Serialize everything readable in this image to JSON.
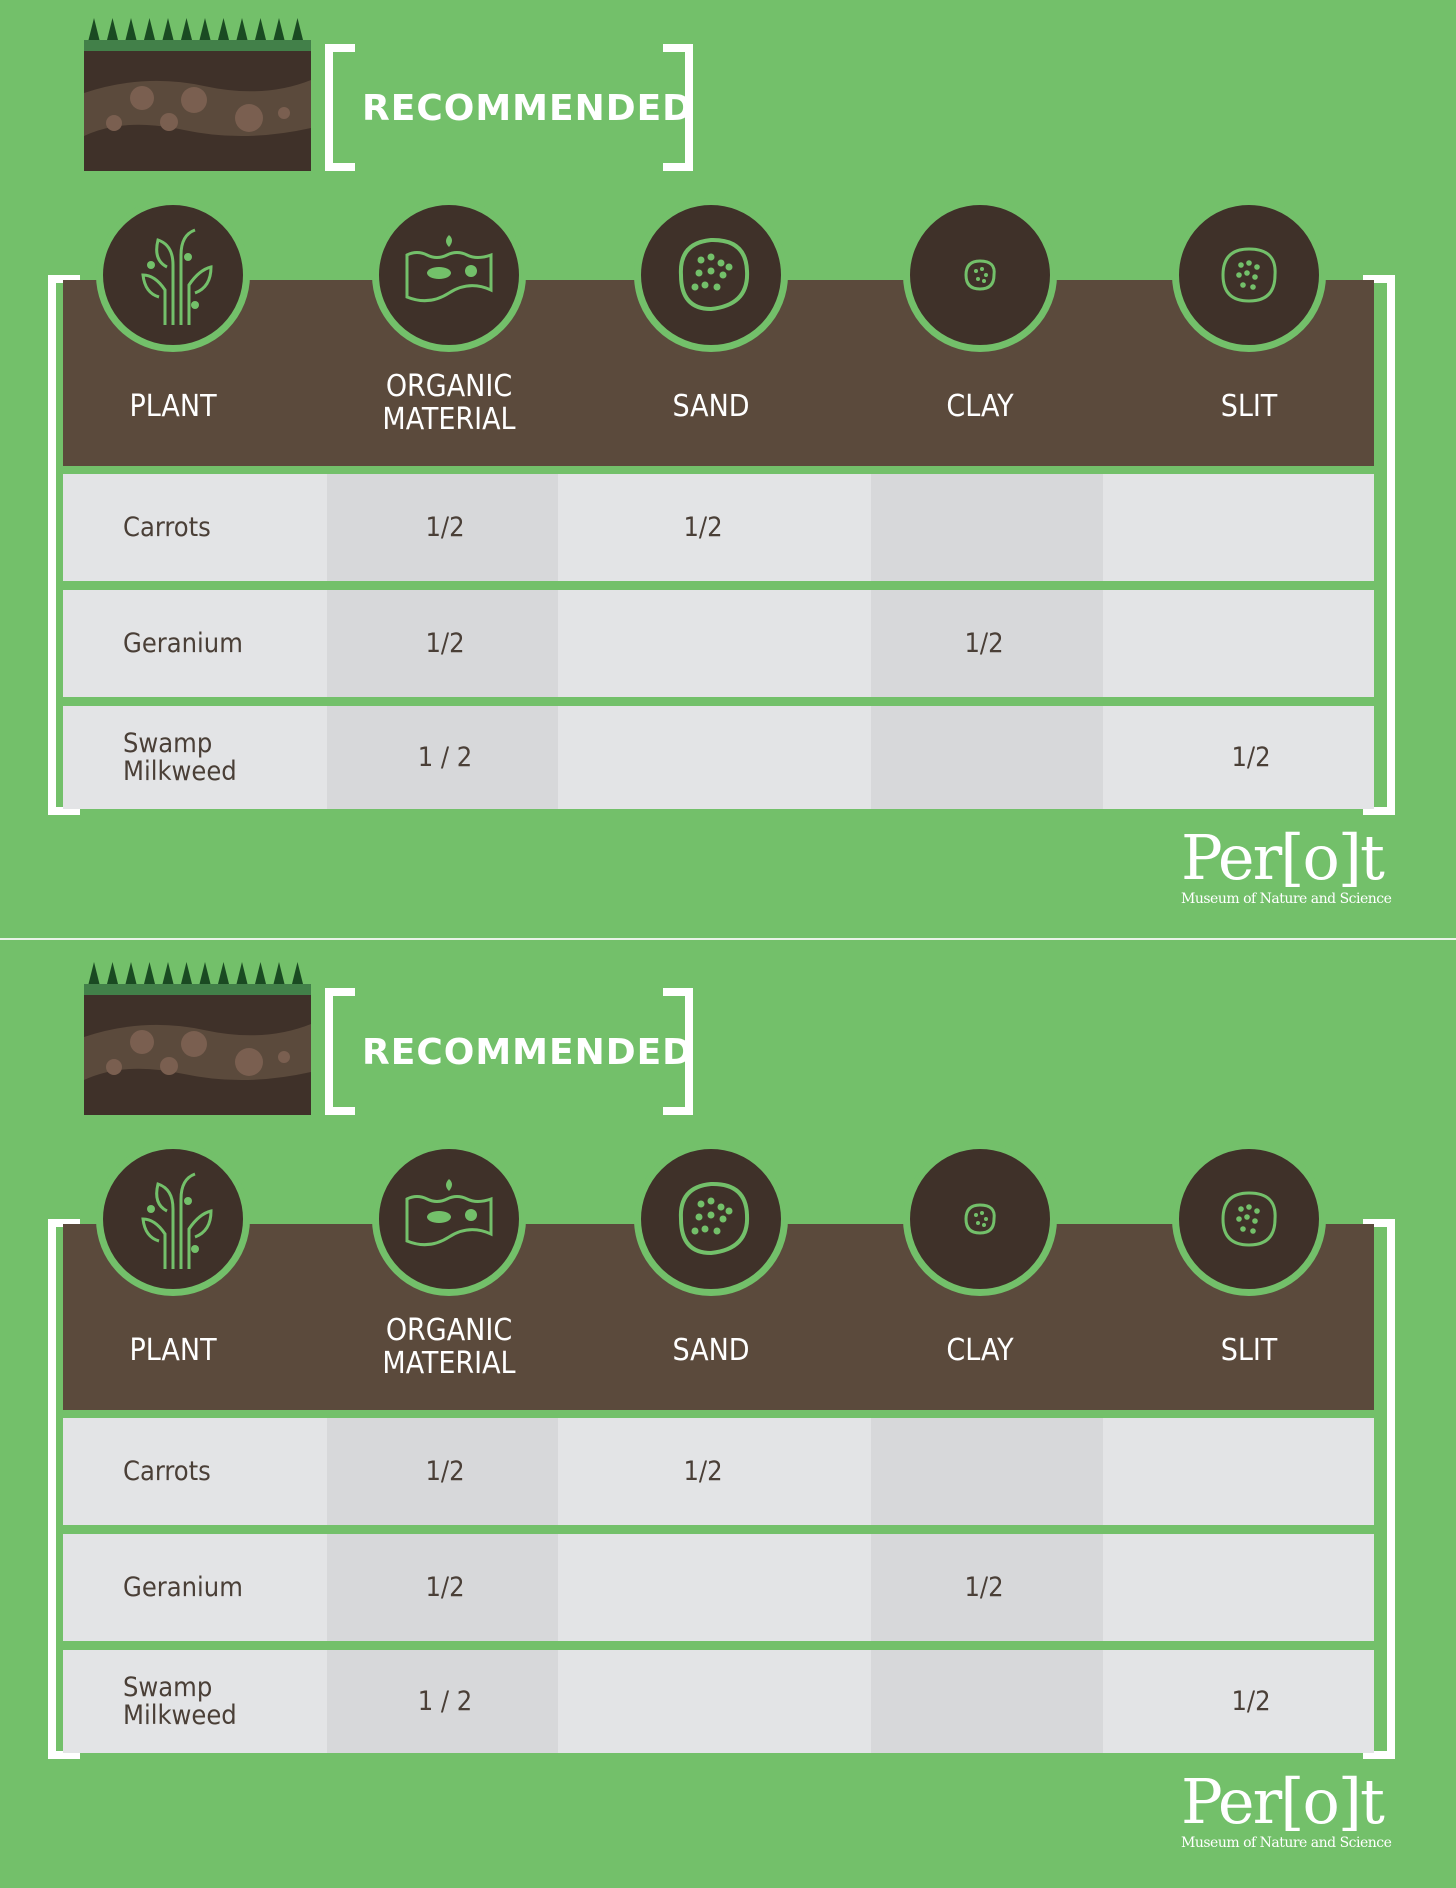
{
  "sections": [
    {
      "title": "RECOMMENDED",
      "headers": [
        {
          "label": "PLANT",
          "icon": "sprout-icon"
        },
        {
          "label": "ORGANIC MATERIAL",
          "icon": "decomposing-matter-icon"
        },
        {
          "label": "SAND",
          "icon": "sand-grain-icon"
        },
        {
          "label": "CLAY",
          "icon": "clay-particle-icon"
        },
        {
          "label": "SLIT",
          "icon": "silt-particle-icon"
        }
      ],
      "rows": [
        {
          "plant": "Carrots",
          "organic": "1/2",
          "sand": "1/2",
          "clay": "",
          "slit": ""
        },
        {
          "plant": "Geranium",
          "organic": "1/2",
          "sand": "",
          "clay": "1/2",
          "slit": ""
        },
        {
          "plant": "Swamp Milkweed",
          "organic": "1 / 2",
          "sand": "",
          "clay": "",
          "slit": "1/2"
        }
      ],
      "logo": {
        "name": "Per[o]t",
        "tagline": "Museum of Nature and Science"
      }
    },
    {
      "title": "RECOMMENDED",
      "headers": [
        {
          "label": "PLANT",
          "icon": "sprout-icon"
        },
        {
          "label": "ORGANIC MATERIAL",
          "icon": "decomposing-matter-icon"
        },
        {
          "label": "SAND",
          "icon": "sand-grain-icon"
        },
        {
          "label": "CLAY",
          "icon": "clay-particle-icon"
        },
        {
          "label": "SLIT",
          "icon": "silt-particle-icon"
        }
      ],
      "rows": [
        {
          "plant": "Carrots",
          "organic": "1/2",
          "sand": "1/2",
          "clay": "",
          "slit": ""
        },
        {
          "plant": "Geranium",
          "organic": "1/2",
          "sand": "",
          "clay": "1/2",
          "slit": ""
        },
        {
          "plant": "Swamp Milkweed",
          "organic": "1 / 2",
          "sand": "",
          "clay": "",
          "slit": "1/2"
        }
      ],
      "logo": {
        "name": "Per[o]t",
        "tagline": "Museum of Nature and Science"
      }
    }
  ],
  "colors": {
    "background": "#73c06a",
    "header": "#5b4a3c",
    "icon_circle": "#3f3129",
    "row": "#e3e4e6",
    "row_alt_column": "#d7d8da",
    "text": "#4a3f37"
  }
}
